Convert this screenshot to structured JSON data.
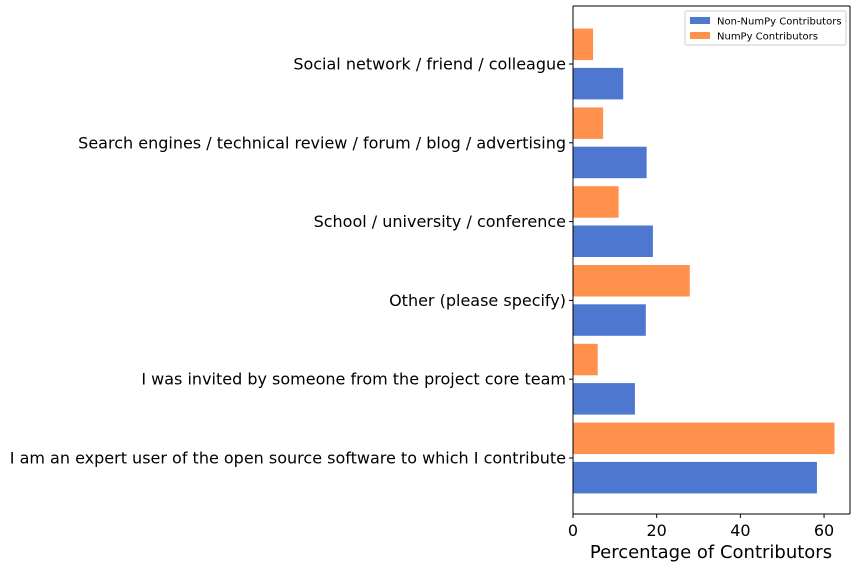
{
  "chart_data": {
    "type": "bar",
    "orientation": "horizontal",
    "categories": [
      "I am an expert user of the open source software to which I contribute",
      "I was invited by someone from the project core team",
      "Other (please specify)",
      "School / university / conference",
      "Search engines / technical review / forum / blog / advertising",
      "Social network / friend / colleague"
    ],
    "series": [
      {
        "name": "Non-NumPy Contributors",
        "color": "#4e77d0",
        "values": [
          58.3,
          14.8,
          17.4,
          19.1,
          17.6,
          12.0
        ]
      },
      {
        "name": "NumPy Contributors",
        "color": "#ff914d",
        "values": [
          62.5,
          5.9,
          27.9,
          10.9,
          7.2,
          4.8
        ]
      }
    ],
    "xlabel": "Percentage of Contributors",
    "ylabel": "",
    "xlim": [
      0,
      66.2
    ],
    "xticks": [
      "0",
      "20",
      "40",
      "60"
    ],
    "grid": false,
    "legend_position": "top-right"
  }
}
